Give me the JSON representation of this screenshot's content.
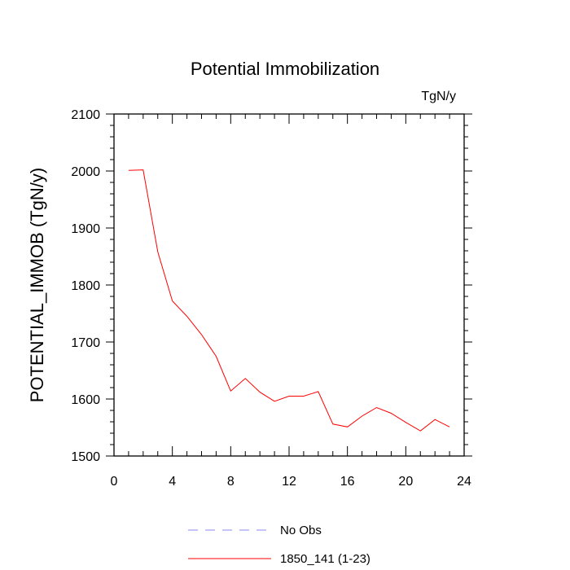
{
  "chart_data": {
    "type": "line",
    "title": "Potential Immobilization",
    "units_label": "TgN/y",
    "xlabel": "",
    "ylabel": "POTENTIAL_IMMOB  (TgN/y)",
    "xlim": [
      0,
      24
    ],
    "ylim": [
      1500,
      2100
    ],
    "xticks": [
      0,
      4,
      8,
      12,
      16,
      20,
      24
    ],
    "yticks": [
      1500,
      1600,
      1700,
      1800,
      1900,
      2000,
      2100
    ],
    "series": [
      {
        "name": "1850_141 (1-23)",
        "color": "#ff0000",
        "style": "solid",
        "x": [
          1,
          2,
          3,
          4,
          5,
          6,
          7,
          8,
          9,
          10,
          11,
          12,
          13,
          14,
          15,
          16,
          17,
          18,
          19,
          20,
          21,
          22,
          23
        ],
        "y": [
          2001,
          2002,
          1858,
          1772,
          1745,
          1713,
          1675,
          1614,
          1636,
          1612,
          1596,
          1605,
          1605,
          1613,
          1556,
          1551,
          1570,
          1585,
          1575,
          1559,
          1544,
          1564,
          1551
        ]
      }
    ],
    "legend": [
      {
        "label": "No Obs",
        "color": "#8a8af0",
        "style": "dashed"
      },
      {
        "label": "1850_141 (1-23)",
        "color": "#ff0000",
        "style": "solid"
      }
    ]
  }
}
